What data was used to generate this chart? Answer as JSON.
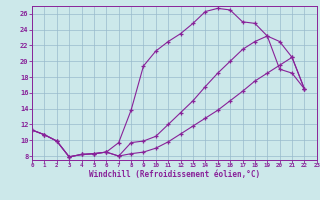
{
  "xlabel": "Windchill (Refroidissement éolien,°C)",
  "bg_color": "#cce8ea",
  "line_color": "#882299",
  "grid_color": "#99bbcc",
  "xlim": [
    0,
    23
  ],
  "ylim": [
    7.5,
    27.0
  ],
  "yticks": [
    8,
    10,
    12,
    14,
    16,
    18,
    20,
    22,
    24,
    26
  ],
  "xticks": [
    0,
    1,
    2,
    3,
    4,
    5,
    6,
    7,
    8,
    9,
    10,
    11,
    12,
    13,
    14,
    15,
    16,
    17,
    18,
    19,
    20,
    21,
    22,
    23
  ],
  "line1_x": [
    0,
    1,
    2,
    3,
    4,
    5,
    6,
    7,
    8,
    9,
    10,
    11,
    12,
    13,
    14,
    15,
    16,
    17,
    18,
    19,
    20,
    21,
    22
  ],
  "line1_y": [
    11.3,
    10.7,
    9.9,
    7.9,
    8.2,
    8.3,
    8.5,
    9.7,
    13.8,
    19.4,
    21.3,
    22.5,
    23.5,
    24.8,
    26.3,
    26.7,
    26.5,
    25.0,
    24.8,
    23.2,
    19.0,
    18.5,
    16.5
  ],
  "line2_x": [
    0,
    1,
    2,
    3,
    4,
    5,
    6,
    7,
    8,
    9,
    10,
    11,
    12,
    13,
    14,
    15,
    16,
    17,
    18,
    19,
    20,
    21,
    22
  ],
  "line2_y": [
    11.3,
    10.7,
    9.9,
    7.9,
    8.2,
    8.3,
    8.5,
    8.0,
    9.7,
    9.9,
    10.5,
    12.0,
    13.5,
    15.0,
    16.8,
    18.5,
    20.0,
    21.5,
    22.5,
    23.2,
    22.5,
    20.5,
    16.5
  ],
  "line3_x": [
    0,
    1,
    2,
    3,
    4,
    5,
    6,
    7,
    8,
    9,
    10,
    11,
    12,
    13,
    14,
    15,
    16,
    17,
    18,
    19,
    20,
    21,
    22
  ],
  "line3_y": [
    11.3,
    10.7,
    9.9,
    7.9,
    8.2,
    8.3,
    8.5,
    8.0,
    8.3,
    8.5,
    9.0,
    9.8,
    10.8,
    11.8,
    12.8,
    13.8,
    15.0,
    16.2,
    17.5,
    18.5,
    19.5,
    20.5,
    16.5
  ]
}
